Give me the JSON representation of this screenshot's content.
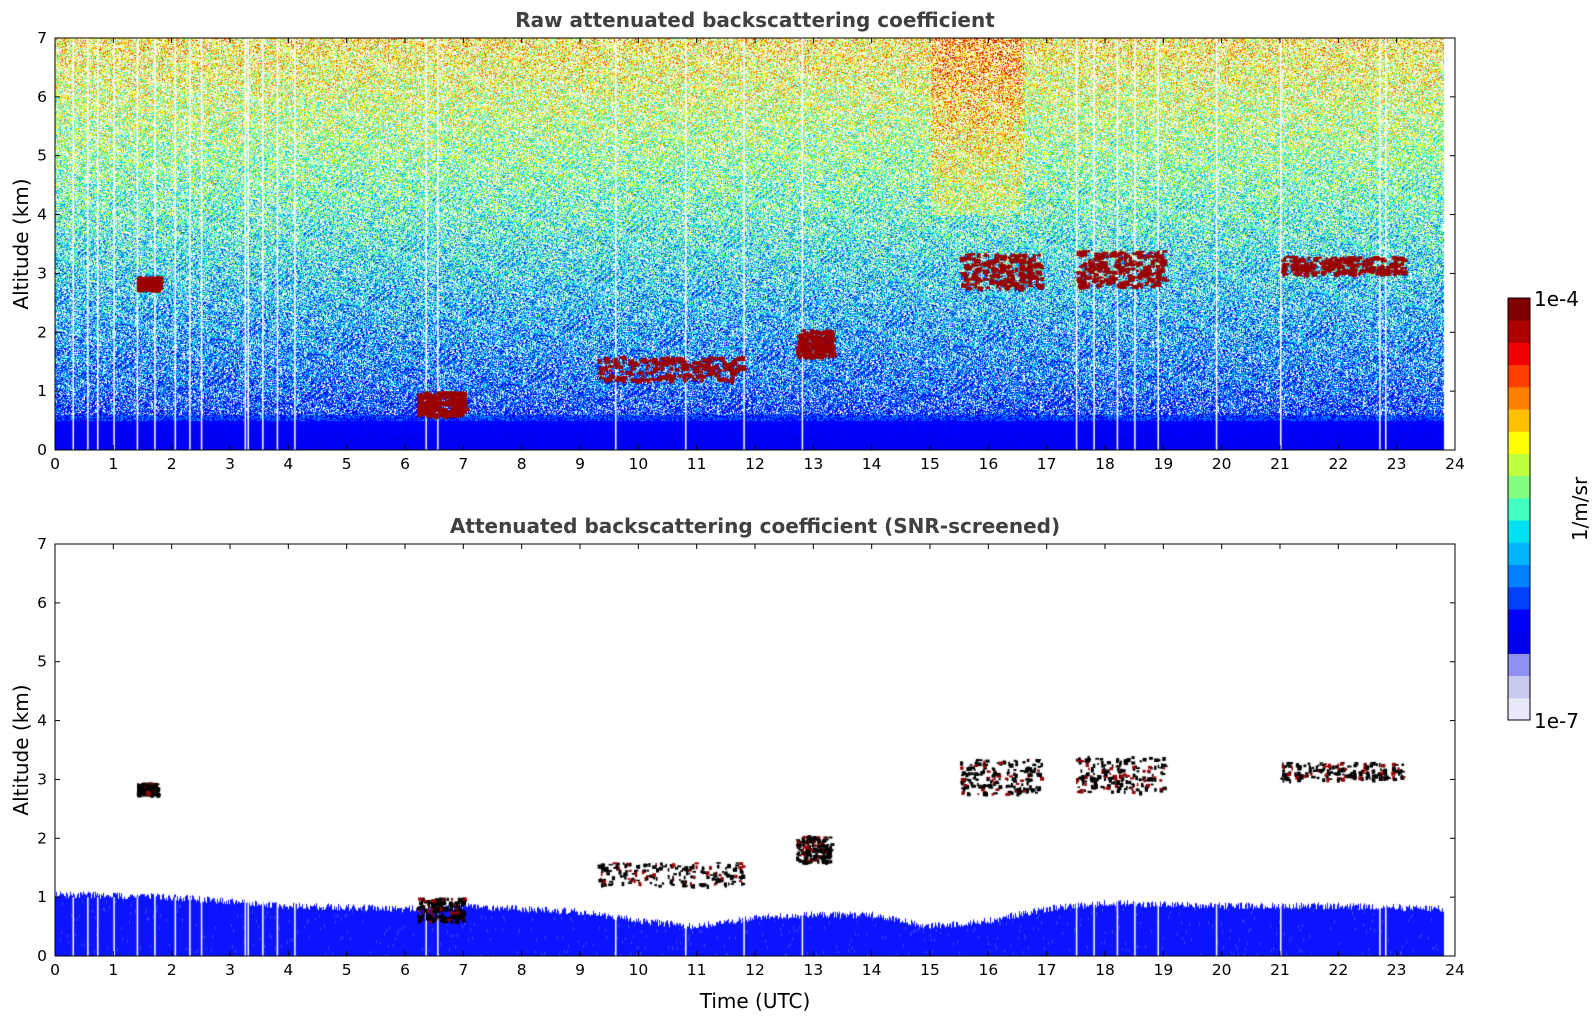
{
  "chart_data": [
    {
      "type": "heatmap",
      "title": "Raw attenuated backscattering coefficient",
      "xlabel": "",
      "ylabel": "Altitude (km)",
      "xlim": [
        0,
        24
      ],
      "ylim": [
        0,
        7
      ],
      "x_ticks": [
        "0",
        "1",
        "2",
        "3",
        "4",
        "5",
        "6",
        "7",
        "8",
        "9",
        "10",
        "11",
        "12",
        "13",
        "14",
        "15",
        "16",
        "17",
        "18",
        "19",
        "20",
        "21",
        "22",
        "23",
        "24"
      ],
      "y_ticks": [
        "0",
        "1",
        "2",
        "3",
        "4",
        "5",
        "6",
        "7"
      ],
      "data_end_hour": 23.8,
      "colorbar": {
        "min_label": "1e-7",
        "max_label": "1e-4",
        "unit": "1/m/sr",
        "scale": "log"
      },
      "features": [
        {
          "name": "Near-surface aerosol layer",
          "x_range": [
            0,
            23.8
          ],
          "y_range": [
            0,
            1.0
          ]
        },
        {
          "name": "Elevated aerosol layer (raw noise-dominated above)",
          "x_range": [
            0,
            23.8
          ],
          "y_range": [
            1.0,
            7.0
          ]
        },
        {
          "name": "Cloud",
          "x_range": [
            1.4,
            1.75
          ],
          "y_range": [
            2.75,
            2.95
          ]
        },
        {
          "name": "Cloud",
          "x_range": [
            6.2,
            7.0
          ],
          "y_range": [
            0.6,
            1.0
          ]
        },
        {
          "name": "Cloud",
          "x_range": [
            9.3,
            11.8
          ],
          "y_range": [
            1.2,
            1.6
          ]
        },
        {
          "name": "Cloud",
          "x_range": [
            12.7,
            13.3
          ],
          "y_range": [
            1.6,
            2.05
          ]
        },
        {
          "name": "Cloud",
          "x_range": [
            15.5,
            16.9
          ],
          "y_range": [
            2.75,
            3.35
          ]
        },
        {
          "name": "Cloud",
          "x_range": [
            17.5,
            19.0
          ],
          "y_range": [
            2.8,
            3.4
          ]
        },
        {
          "name": "Cloud",
          "x_range": [
            21.0,
            23.1
          ],
          "y_range": [
            3.0,
            3.3
          ]
        }
      ]
    },
    {
      "type": "heatmap",
      "title": "Attenuated backscattering coefficient (SNR-screened)",
      "xlabel": "Time (UTC)",
      "ylabel": "Altitude (km)",
      "xlim": [
        0,
        24
      ],
      "ylim": [
        0,
        7
      ],
      "x_ticks": [
        "0",
        "1",
        "2",
        "3",
        "4",
        "5",
        "6",
        "7",
        "8",
        "9",
        "10",
        "11",
        "12",
        "13",
        "14",
        "15",
        "16",
        "17",
        "18",
        "19",
        "20",
        "21",
        "22",
        "23",
        "24"
      ],
      "y_ticks": [
        "0",
        "1",
        "2",
        "3",
        "4",
        "5",
        "6",
        "7"
      ],
      "data_end_hour": 23.8,
      "boundary_layer_top_km": [
        {
          "t": 0,
          "h": 1.05
        },
        {
          "t": 2,
          "h": 1.0
        },
        {
          "t": 4,
          "h": 0.85
        },
        {
          "t": 6,
          "h": 0.8
        },
        {
          "t": 7,
          "h": 0.85
        },
        {
          "t": 8,
          "h": 0.8
        },
        {
          "t": 9,
          "h": 0.75
        },
        {
          "t": 10,
          "h": 0.6
        },
        {
          "t": 11,
          "h": 0.5
        },
        {
          "t": 12,
          "h": 0.65
        },
        {
          "t": 13,
          "h": 0.7
        },
        {
          "t": 14,
          "h": 0.7
        },
        {
          "t": 15,
          "h": 0.5
        },
        {
          "t": 16,
          "h": 0.6
        },
        {
          "t": 17,
          "h": 0.8
        },
        {
          "t": 18,
          "h": 0.9
        },
        {
          "t": 20,
          "h": 0.85
        },
        {
          "t": 22,
          "h": 0.85
        },
        {
          "t": 23.8,
          "h": 0.8
        }
      ],
      "clouds": [
        {
          "x_range": [
            1.4,
            1.75
          ],
          "y_range": [
            2.75,
            2.95
          ]
        },
        {
          "x_range": [
            6.2,
            7.0
          ],
          "y_range": [
            0.6,
            1.0
          ]
        },
        {
          "x_range": [
            9.3,
            11.8
          ],
          "y_range": [
            1.2,
            1.6
          ]
        },
        {
          "x_range": [
            12.7,
            13.3
          ],
          "y_range": [
            1.6,
            2.05
          ]
        },
        {
          "x_range": [
            15.5,
            16.9
          ],
          "y_range": [
            2.75,
            3.35
          ]
        },
        {
          "x_range": [
            17.5,
            19.0
          ],
          "y_range": [
            2.8,
            3.4
          ]
        },
        {
          "x_range": [
            21.0,
            23.1
          ],
          "y_range": [
            3.0,
            3.3
          ]
        }
      ]
    }
  ],
  "colorbar": {
    "min_label": "1e-7",
    "max_label": "1e-4",
    "unit_label": "1/m/sr",
    "colors": [
      "#e8e8f8",
      "#c8c8f0",
      "#9090f0",
      "#0000f0",
      "#0000ff",
      "#0040ff",
      "#0080ff",
      "#00b4ff",
      "#00e0f0",
      "#40ffc0",
      "#80ff80",
      "#c0ff40",
      "#ffff00",
      "#ffc000",
      "#ff8000",
      "#ff4000",
      "#f00000",
      "#b00000",
      "#800000"
    ]
  },
  "colors": {
    "blue": "#0a14ff",
    "cloud_red": "#a00000",
    "cloud_black": "#000000",
    "title_gray": "#404040"
  }
}
